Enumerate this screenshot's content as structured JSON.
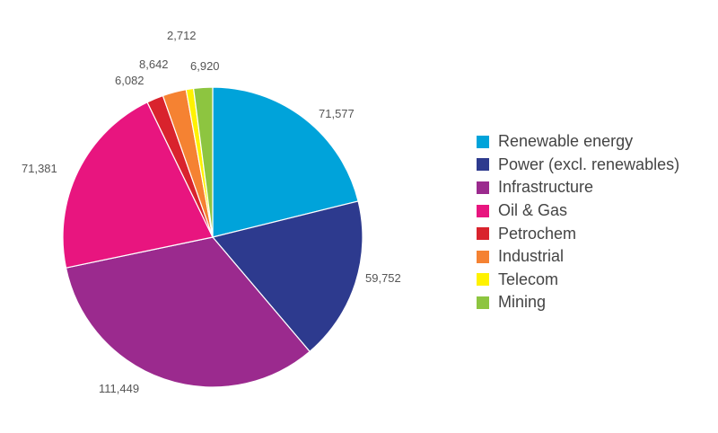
{
  "chart_data": {
    "type": "pie",
    "slices": [
      {
        "label": "Renewable energy",
        "value": 71577,
        "value_label": "71,577",
        "color": "#00a3da"
      },
      {
        "label": "Power (excl. renewables)",
        "value": 59752,
        "value_label": "59,752",
        "color": "#2d3a8e"
      },
      {
        "label": "Infrastructure",
        "value": 111449,
        "value_label": "111,449",
        "color": "#9b2a8e"
      },
      {
        "label": "Oil & Gas",
        "value": 71381,
        "value_label": "71,381",
        "color": "#e8157f"
      },
      {
        "label": "Petrochem",
        "value": 6082,
        "value_label": "6,082",
        "color": "#d9232d"
      },
      {
        "label": "Industrial",
        "value": 8642,
        "value_label": "8,642",
        "color": "#f58232"
      },
      {
        "label": "Telecom",
        "value": 2712,
        "value_label": "2,712",
        "color": "#fff200"
      },
      {
        "label": "Mining",
        "value": 6920,
        "value_label": "6,920",
        "color": "#8dc540"
      }
    ],
    "legend_position": "right",
    "start": "top",
    "direction": "clockwise"
  }
}
